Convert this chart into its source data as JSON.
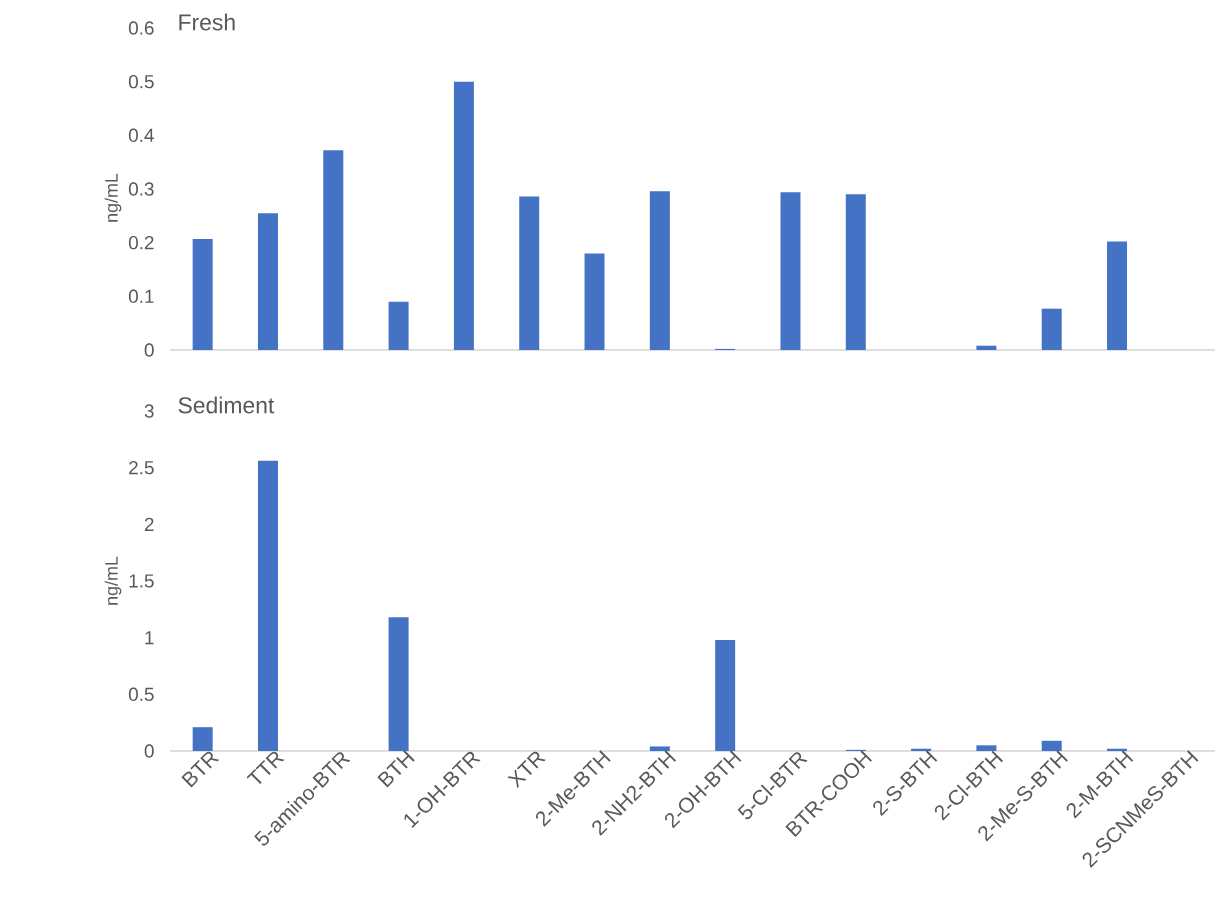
{
  "chart_data": [
    {
      "type": "bar",
      "title": "Fresh",
      "ylabel": "ng/mL",
      "categories": [
        null,
        null,
        null,
        null,
        null,
        null,
        null,
        null,
        null,
        null,
        null,
        null,
        null,
        null,
        null,
        null
      ],
      "values": [
        0.207,
        0.255,
        0.372,
        0.09,
        0.5,
        0.286,
        0.18,
        0.296,
        0.002,
        0.294,
        0.29,
        0,
        0.008,
        0.077,
        0.202,
        0
      ],
      "color": "#4472c4",
      "ylim": [
        0,
        0.6
      ],
      "yticks": [
        0,
        0.1,
        0.2,
        0.3,
        0.4,
        0.5,
        0.6
      ],
      "tick_labels": "y"
    },
    {
      "type": "bar",
      "title": "Sediment",
      "ylabel": "ng/mL",
      "categories": [
        "BTR",
        "TTR",
        "5-amino-BTR",
        "BTH",
        "1-OH-BTR",
        "XTR",
        "2-Me-BTH",
        "2-NH2-BTH",
        "2-OH-BTH",
        "5-Cl-BTR",
        "BTR-COOH",
        "2-S-BTH",
        "2-Cl-BTH",
        "2-Me-S-BTH",
        "2-M-BTH",
        "2-SCNMeS-BTH"
      ],
      "values": [
        0.21,
        2.56,
        0,
        1.18,
        0,
        0,
        0,
        0.04,
        0.98,
        0,
        0.01,
        0.02,
        0.05,
        0.09,
        0.02,
        0
      ],
      "color": "#4472c4",
      "ylim": [
        0,
        3
      ],
      "yticks": [
        0,
        0.5,
        1,
        1.5,
        2,
        2.5,
        3
      ]
    }
  ]
}
